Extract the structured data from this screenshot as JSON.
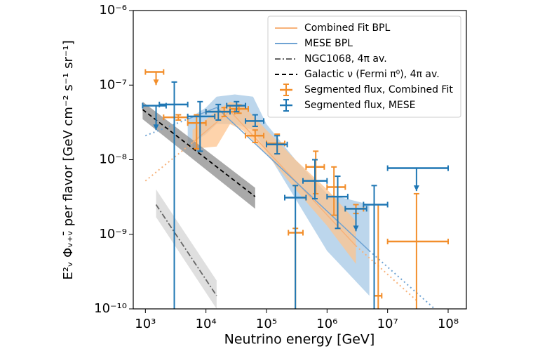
{
  "chart_data": {
    "type": "line",
    "xlabel": "Neutrino energy [GeV]",
    "ylabel": "E²ᵥ Φᵥ₊ᵥ̄ per flavor [GeV cm⁻² s⁻¹ sr⁻¹]",
    "log_x": true,
    "log_y": true,
    "xlim": [
      630,
      200000000
    ],
    "ylim": [
      1e-10,
      1e-06
    ],
    "xticks": [
      {
        "value": 1000,
        "label": "10³"
      },
      {
        "value": 10000,
        "label": "10⁴"
      },
      {
        "value": 100000,
        "label": "10⁵"
      },
      {
        "value": 1000000,
        "label": "10⁶"
      },
      {
        "value": 10000000,
        "label": "10⁷"
      },
      {
        "value": 100000000,
        "label": "10⁸"
      }
    ],
    "yticks": [
      {
        "value": 1e-10,
        "label": "10⁻¹⁰"
      },
      {
        "value": 1e-09,
        "label": "10⁻⁹"
      },
      {
        "value": 1e-08,
        "label": "10⁻⁸"
      },
      {
        "value": 1e-07,
        "label": "10⁻⁷"
      },
      {
        "value": 1e-06,
        "label": "10⁻⁶"
      }
    ],
    "legend": "upper right",
    "bands": [
      {
        "color": "#a6c8e6",
        "x": [
          5000,
          10000,
          15000,
          30000,
          60000,
          100000,
          300000,
          1000000,
          5000000
        ],
        "lower": [
          1.5e-08,
          2.2e-08,
          3e-08,
          3e-08,
          2.5e-08,
          1.3e-08,
          3e-09,
          6e-10,
          1.5e-10
        ],
        "upper": [
          3.5e-08,
          5e-08,
          7e-08,
          7.5e-08,
          7e-08,
          3e-08,
          1e-08,
          3.5e-09,
          2.5e-09
        ]
      },
      {
        "color": "#fdc48f",
        "x": [
          6000,
          15000,
          25000,
          40000,
          100000,
          300000,
          1000000,
          3000000
        ],
        "lower": [
          1.4e-08,
          1.5e-08,
          3e-08,
          2.5e-08,
          1.2e-08,
          4e-09,
          1.3e-09,
          4e-10
        ],
        "upper": [
          2.5e-08,
          4.5e-08,
          6e-08,
          5.5e-08,
          2.5e-08,
          1e-08,
          4e-09,
          1.5e-09
        ]
      },
      {
        "color": "#8c8c8c",
        "x": [
          900,
          65000
        ],
        "lower": [
          3.5e-08,
          2.2e-09
        ],
        "upper": [
          6e-08,
          4.2e-09
        ]
      },
      {
        "color": "#d4d4d4",
        "x": [
          1500,
          15000
        ],
        "lower": [
          1.7e-09,
          1e-10
        ],
        "upper": [
          4e-09,
          2.4e-10
        ]
      }
    ],
    "series": [
      {
        "name": "Combined Fit BPL",
        "kind": "line",
        "style": "solid",
        "color": "#f7b27a",
        "solid_range": [
          6000,
          3000000
        ],
        "x": [
          1000,
          6000,
          25000,
          3000000,
          30000000
        ],
        "values": [
          5.2e-09,
          1.7e-08,
          4.5e-08,
          7e-10,
          1.3e-10
        ]
      },
      {
        "name": "MESE BPL",
        "kind": "line",
        "style": "solid",
        "color": "#6fa3d3",
        "solid_range": [
          5000,
          5000000
        ],
        "x": [
          1000,
          5000,
          15000,
          5000000,
          60000000
        ],
        "values": [
          2.1e-08,
          3.5e-08,
          5e-08,
          6e-10,
          1e-10
        ]
      },
      {
        "name": "NGC1068, 4π av.",
        "kind": "line",
        "style": "dashdot",
        "color": "#666666",
        "x": [
          1500,
          15000
        ],
        "values": [
          2.5e-09,
          1.5e-10
        ]
      },
      {
        "name": "Galactic ν (Fermi π⁰), 4π av.",
        "kind": "line",
        "style": "dashed",
        "color": "#000000",
        "x": [
          900,
          65000
        ],
        "values": [
          4.7e-08,
          3.2e-09
        ]
      },
      {
        "name": "Segmented flux, Combined Fit",
        "kind": "errorbar",
        "color": "#f28e2b",
        "x": [
          1500,
          3500,
          7000,
          20000,
          35000,
          65000,
          150000,
          300000,
          650000,
          1300000,
          3000000,
          7000000,
          30000000
        ],
        "values": [
          1.5e-07,
          3.7e-08,
          3.1e-08,
          4.4e-08,
          4.8e-08,
          2.1e-08,
          1.65e-08,
          1.05e-09,
          8e-09,
          4.3e-09,
          2.2e-09,
          1.5e-10,
          8e-10
        ],
        "xlow": [
          1000,
          2000,
          5000,
          10000,
          25000,
          45000,
          100000,
          230000,
          450000,
          1000000,
          2000000,
          6000000,
          10000000
        ],
        "xhigh": [
          2000,
          5000,
          10000,
          30000,
          50000,
          90000,
          200000,
          400000,
          900000,
          2000000,
          4000000,
          8000000,
          100000000
        ],
        "ylow": [
          1e-07,
          3.4e-08,
          1.4e-08,
          3.8e-08,
          4.2e-08,
          1.7e-08,
          1.2e-08,
          null,
          3.5e-09,
          1.8e-09,
          1.9e-09,
          null,
          null
        ],
        "yhigh": [
          1.5e-07,
          4e-08,
          4e-08,
          5e-08,
          5.4e-08,
          2.5e-08,
          2.2e-08,
          1.2e-09,
          1.3e-08,
          8e-09,
          2.5e-09,
          2.5e-09,
          3.5e-09
        ],
        "upper_limit": [
          true,
          false,
          false,
          false,
          false,
          false,
          false,
          false,
          false,
          false,
          false,
          false,
          false
        ]
      },
      {
        "name": "Segmented flux, MESE",
        "kind": "errorbar",
        "color": "#1f77b4",
        "x": [
          1500,
          3000,
          8000,
          16000,
          32000,
          65000,
          150000,
          300000,
          630000,
          1500000,
          3000000,
          6000000,
          30000000
        ],
        "values": [
          5.3e-08,
          5.5e-08,
          3.8e-08,
          4.4e-08,
          5.3e-08,
          3.3e-08,
          1.6e-08,
          3.1e-09,
          5.2e-09,
          3.2e-09,
          2.2e-09,
          2.5e-09,
          7.7e-09
        ],
        "xlow": [
          900,
          1700,
          5000,
          10000,
          22000,
          45000,
          100000,
          200000,
          400000,
          1000000,
          2000000,
          4000000,
          10000000
        ],
        "xhigh": [
          2200,
          5000,
          14000,
          25000,
          45000,
          90000,
          220000,
          450000,
          1000000,
          2200000,
          4500000,
          10000000,
          100000000
        ],
        "ylow": [
          2.5e-08,
          null,
          1.3e-08,
          3.4e-08,
          4.4e-08,
          2.8e-08,
          1.2e-08,
          null,
          3e-09,
          1.2e-09,
          1.1e-09,
          null,
          3.8e-09
        ],
        "yhigh": [
          5.3e-08,
          1.1e-07,
          6e-08,
          5.5e-08,
          6e-08,
          4e-08,
          2.1e-08,
          4.5e-09,
          1e-08,
          6e-09,
          2.2e-09,
          4.5e-09,
          7.7e-09
        ],
        "upper_limit": [
          true,
          false,
          false,
          false,
          false,
          false,
          false,
          false,
          false,
          false,
          true,
          false,
          true
        ]
      }
    ]
  }
}
